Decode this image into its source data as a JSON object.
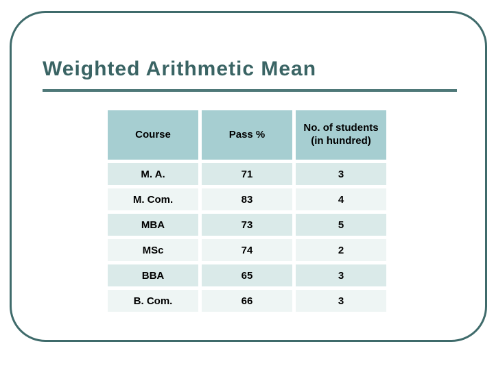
{
  "slide": {
    "title": "Weighted Arithmetic Mean"
  },
  "table": {
    "columns": [
      "Course",
      "Pass %",
      "No. of students (in hundred)"
    ],
    "rows": [
      [
        "M. A.",
        "71",
        "3"
      ],
      [
        "M. Com.",
        "83",
        "4"
      ],
      [
        "MBA",
        "73",
        "5"
      ],
      [
        "MSc",
        "74",
        "2"
      ],
      [
        "BBA",
        "65",
        "3"
      ],
      [
        "B. Com.",
        "66",
        "3"
      ]
    ]
  },
  "colors": {
    "background": "#FFFFFF",
    "title-color": "#3A6464",
    "rule-color": "#4E7878",
    "frame-border": "#3F6B6B",
    "header-bg": "#A6CED1",
    "row-dark": "#DAEAE9",
    "row-light": "#EEF5F4",
    "cell-text": "#000000"
  }
}
